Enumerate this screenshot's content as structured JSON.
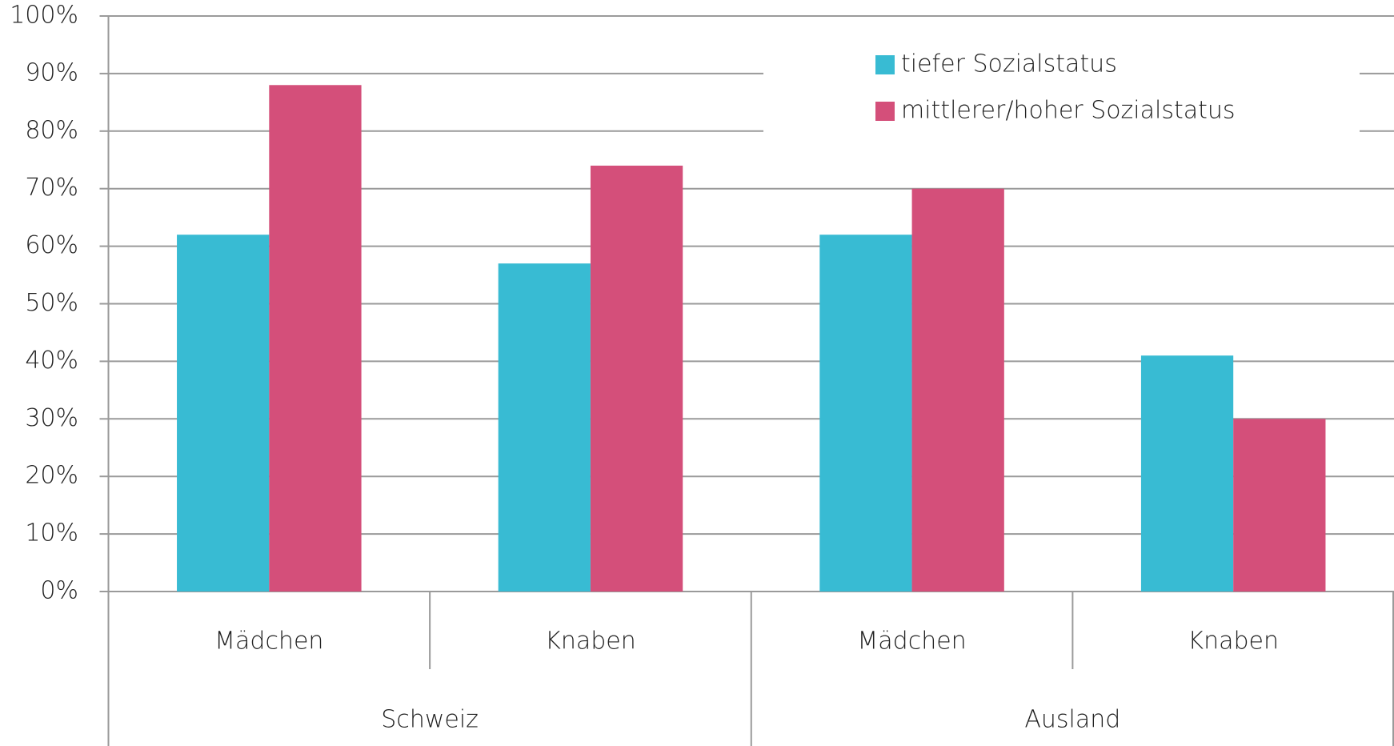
{
  "chart_data": {
    "type": "bar",
    "categories": [
      "Mädchen",
      "Knaben",
      "Mädchen",
      "Knaben"
    ],
    "groups": [
      "Schweiz",
      "Ausland"
    ],
    "series": [
      {
        "name": "tiefer Sozialstatus",
        "color": "#38bbd3",
        "values": [
          62,
          57,
          62,
          41
        ]
      },
      {
        "name": "mittlerer/hoher Sozialstatus",
        "color": "#d44f7a",
        "values": [
          88,
          74,
          70,
          30
        ]
      }
    ],
    "ylim": [
      0,
      100
    ],
    "yticks": [
      {
        "value": 0,
        "label": "0%"
      },
      {
        "value": 10,
        "label": "10%"
      },
      {
        "value": 20,
        "label": "20%"
      },
      {
        "value": 30,
        "label": "30%"
      },
      {
        "value": 40,
        "label": "40%"
      },
      {
        "value": 50,
        "label": "50%"
      },
      {
        "value": 60,
        "label": "60%"
      },
      {
        "value": 70,
        "label": "70%"
      },
      {
        "value": 80,
        "label": "80%"
      },
      {
        "value": 90,
        "label": "90%"
      },
      {
        "value": 100,
        "label": "100%"
      }
    ],
    "grid": true,
    "legend": "top-right"
  }
}
